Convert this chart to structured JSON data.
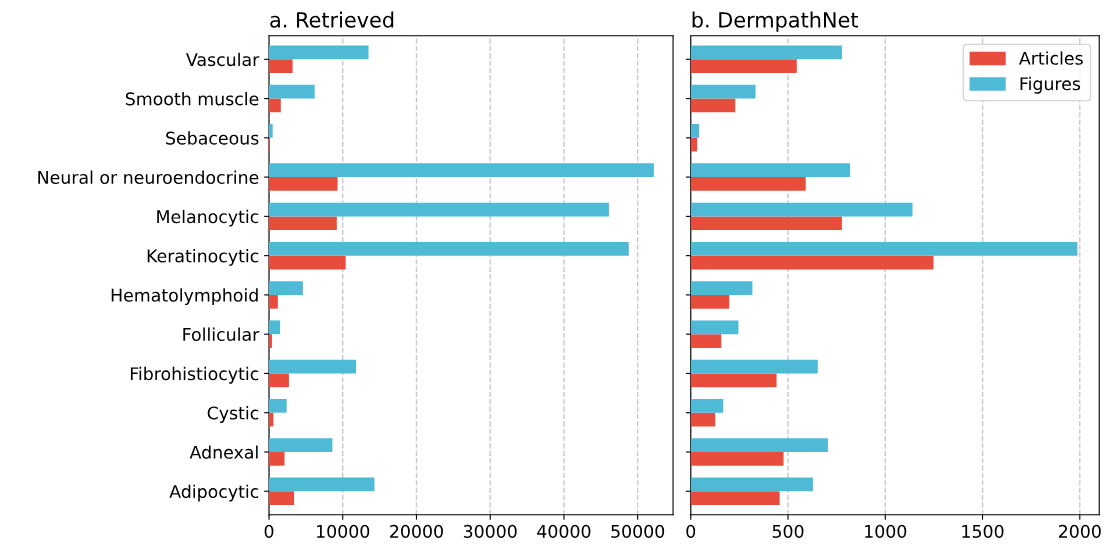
{
  "chart_data": [
    {
      "type": "bar",
      "orientation": "horizontal",
      "title": "a. Retrieved",
      "categories": [
        "Vascular",
        "Smooth muscle",
        "Sebaceous",
        "Neural or neuroendocrine",
        "Melanocytic",
        "Keratinocytic",
        "Hematolymphoid",
        "Follicular",
        "Fibrohistiocytic",
        "Cystic",
        "Adnexal",
        "Adipocytic"
      ],
      "series": [
        {
          "color": "#e74c3c",
          "values": [
            3200,
            1600,
            100,
            9300,
            9200,
            10400,
            1200,
            400,
            2700,
            600,
            2100,
            3400
          ]
        },
        {
          "color": "#4fbad6",
          "values": [
            13500,
            6200,
            500,
            52200,
            46100,
            48800,
            4600,
            1500,
            11800,
            2400,
            8600,
            14300
          ]
        }
      ],
      "xlim": [
        0,
        54800
      ],
      "xticks": [
        0,
        10000,
        20000,
        30000,
        40000,
        50000
      ],
      "grid": "x",
      "legend": false
    },
    {
      "type": "bar",
      "orientation": "horizontal",
      "title": "b. DermpathNet",
      "categories": [
        null,
        null,
        null,
        null,
        null,
        null,
        null,
        null,
        null,
        null,
        null,
        null
      ],
      "series": [
        {
          "name": "Articles",
          "color": "#e74c3c",
          "values": [
            545,
            229,
            33,
            591,
            777,
            1248,
            198,
            157,
            441,
            126,
            477,
            457
          ]
        },
        {
          "name": "Figures",
          "color": "#4fbad6",
          "values": [
            777,
            333,
            43,
            819,
            1140,
            1988,
            317,
            245,
            653,
            167,
            705,
            628
          ]
        }
      ],
      "xlim": [
        0,
        2100
      ],
      "xticks": [
        0,
        500,
        1000,
        1500,
        2000
      ],
      "grid": "x",
      "legend": "top right",
      "tick_labels": "x"
    }
  ]
}
